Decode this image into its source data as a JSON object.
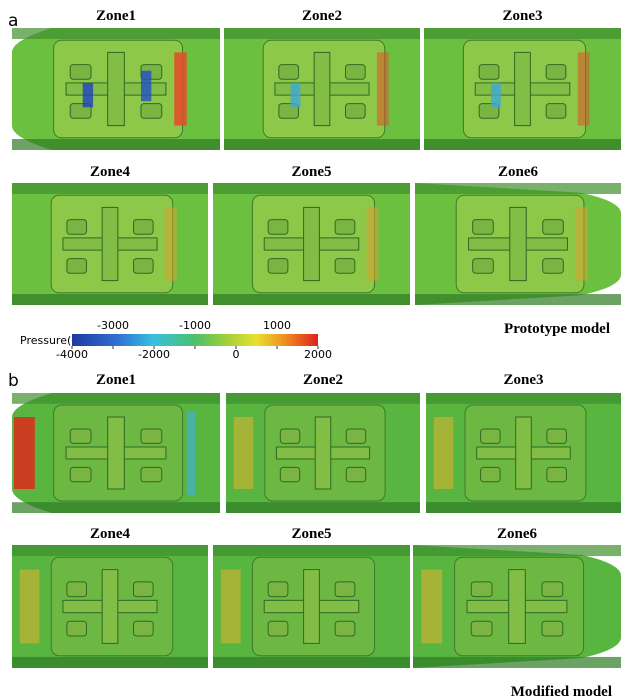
{
  "panels": [
    {
      "label": "a",
      "zones": [
        "Zone1",
        "Zone2",
        "Zone3",
        "Zone4",
        "Zone5",
        "Zone6"
      ],
      "model": "Prototype model"
    },
    {
      "label": "b",
      "zones": [
        "Zone1",
        "Zone2",
        "Zone3",
        "Zone4",
        "Zone5",
        "Zone6"
      ],
      "model": "Modified model"
    }
  ],
  "colorbar": {
    "title": "Pressure(Pa)",
    "min": -4000,
    "max": 2000,
    "ticks": [
      -4000,
      -3000,
      -2000,
      -1000,
      0,
      1000,
      2000
    ]
  }
}
